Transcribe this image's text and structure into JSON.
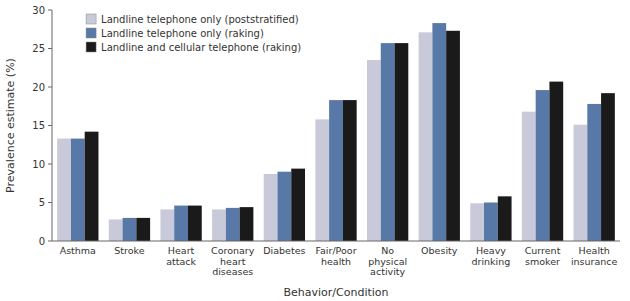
{
  "chart_data": {
    "type": "bar",
    "xlabel": "Behavior/Condition",
    "ylabel": "Prevalence estimate (%)",
    "categories": [
      "Asthma",
      "Stroke",
      "Heart\nattack",
      "Coronary\nheart\ndiseases",
      "Diabetes",
      "Fair/Poor\nhealth",
      "No\nphysical\nactivity",
      "Obesity",
      "Heavy\ndrinking",
      "Current\nsmoker",
      "Health\ninsurance"
    ],
    "series": [
      {
        "name": "Landline telephone only (poststratified)",
        "color": "#c9cad9",
        "values": [
          13.3,
          2.8,
          4.1,
          4.1,
          8.7,
          15.8,
          23.5,
          27.1,
          4.9,
          16.8,
          15.1
        ]
      },
      {
        "name": "Landline telephone only (raking)",
        "color": "#5878a8",
        "values": [
          13.3,
          3.0,
          4.6,
          4.3,
          9.0,
          18.3,
          25.7,
          28.3,
          5.0,
          19.6,
          17.8
        ]
      },
      {
        "name": "Landline and cellular telephone (raking)",
        "color": "#1a1a1a",
        "values": [
          14.2,
          3.0,
          4.6,
          4.4,
          9.4,
          18.3,
          25.7,
          27.3,
          5.8,
          20.7,
          19.2
        ]
      }
    ],
    "ylim": [
      0,
      30
    ],
    "yticks": [
      0,
      5,
      10,
      15,
      20,
      25,
      30
    ],
    "legend": "upper left"
  }
}
